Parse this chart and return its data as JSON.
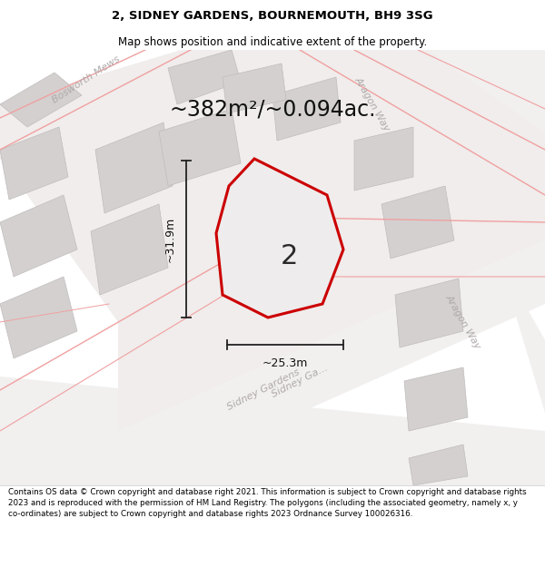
{
  "title": "2, SIDNEY GARDENS, BOURNEMOUTH, BH9 3SG",
  "subtitle": "Map shows position and indicative extent of the property.",
  "area_text": "~382m²/~0.094ac.",
  "width_text": "~25.3m",
  "height_text": "~31.9m",
  "plot_label": "2",
  "footer": "Contains OS data © Crown copyright and database right 2021. This information is subject to Crown copyright and database rights 2023 and is reproduced with the permission of HM Land Registry. The polygons (including the associated geometry, namely x, y co-ordinates) are subject to Crown copyright and database rights 2023 Ordnance Survey 100026316.",
  "bg_color": "#e8e4e4",
  "road_color": "#f5f2f2",
  "block_color": "#d4d0d0",
  "road_line_color": "#f0a0a0",
  "plot_outline_color": "#cc0000",
  "plot_fill_color": "#eeecec",
  "dim_line_color": "#222222",
  "street_label_color": "#b0aaaa",
  "title_color": "#000000",
  "footer_color": "#000000",
  "white": "#ffffff"
}
